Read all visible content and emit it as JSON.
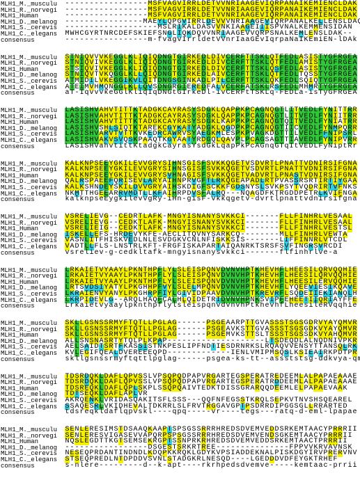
{
  "names": [
    "MLH1_M._musculu",
    "MLH1_R._norvegi",
    "MLH1_Human",
    "MLH1_D._melanog",
    "MLH1_S._cerevis",
    "MLH1_C._elegans",
    "consensus"
  ],
  "blocks": [
    {
      "rows": [
        "-----------------MSFVAGVIRRLDETVVNRIAAGEVIQRPANAIKEMIENCLDAK",
        "-----------------MSFVAGVIRRLDETVVNRIAAGEVIQRPANAIKEMIENCLDAK",
        "-----------------MSFVAGVIRRLDETVVNRIAAGEVIQRPANAIKEMIENCLDAK",
        "----------------MAEYLQPGVIRRLDEVVVNRIAAGEVIQRPANALKELLENSLDAQ",
        "-------------------MSLRIKALDASVVNKIAAGEIIISPVNALKEMMENSIDAN",
        "MWHCGYRTNRCDEFSKIEFSNGLIQKDQVVNRIAAGEVVQRPSNALKEMLENSLDAK--",
        "-----------------m-fvagvIrrldetVVnrIaaGEvIqrpaNaIKEmiEN-lDAk"
      ]
    },
    {
      "rows": [
        "STNIQVVVKEGGLKLIQIQDNGTGIRKEDLDIVCERFTTSKLQTFEDLASISTYGFRGEA",
        "STNIQVIVKEGGLKLIQIQDNGTGIRKEDLDIVCERFTTSKLQTFEDLAMISTYGFRGEA",
        "STSIQVIVKEGGLKLIQIQDNGTGIRKEDLDIVCERFTTSKLQSFEDLASISTYGFRGEA",
        "STNIQVTVKQGGLKLLQIQDNGTGIRKEDLAIVCERFTTSKLQTFEDLTQSSTYGFRGEA",
        "ATMIDILVKEGGIKVLQITDNGSGINKADLPILCERFTTSKLQKFEDLSQIQTYGFRGEA",
        "ATEIMVHMQNGGLKLLQVSDNGRGIEREDFALVCERFATSKLRSFEDLMHMRTYGFRGEA",
        "aT-IqvvvkeGGlKliqIqDNGtGIrkeDl-ivCERFtTSKLq-FEDLa-isTyGFRGEA"
      ]
    },
    {
      "rows": [
        "LASISHVAHVTITTKTADGKCAYRASYSDGKLQAPPKPCAGNQGTLITVEDLFYNITTRR",
        "LASISHVAHVTITTKTADGKCAYRASYSDGKLQAPPKPCAGNQGTLITVEDLFYNIITRR",
        "LASISHVAHVTITTKTADGKCAYRASYSDGKLKAPPKPCAGNQGTQITVEDLFYNIATRR",
        "LASISHVSHLSIQTKTAREKCGYKATYADGKLQGDPKPCAGNQGTIICVEDLFYNMPQRR",
        "LASISHVARVTVTTKVKEDRCAWRVSYAEGKMLESPKPVAGKDGTTILVEDLFFNIPSRL",
        "LASISHVAKVSVQSKPAAQTKGYAATYRDGQLQAVPLPCAGSAGTTIAVEDLFYNIPVRR",
        "LASiSHVahvtittKtadgkCayrasYsdGkLqapPkPcAGnqGTqItVEDLFyNiptRr"
      ]
    },
    {
      "rows": [
        "KALKNPSEEYGKILEVVGRYSIHNSGISFSVKKQGETVSDVRTLPNATTVDNIRSIFGNA",
        "KALKNPSEEYGKILEVVGRYSIHNSGISFSVKKQGETVSDVRTLPNATTVDNIRSIFGNA",
        "KALKNPSEEYGKILEVVGRYSVHNAGISFSVKKQGETVADVRTLPNASTVDNIRSIFGNA",
        "QALRSPAEEFQRISEVLARYAIHNPRVGFTLRKQGEAPADLRTPVASSRSRTIRTIYGAA",
        "KALKSHNDEYSKILDVVGRYAIHSKDIGFSCKKFGDSNYSLSVKPSYTVQDRIRTVFNKS",
        "NKMTTHGEEARRVMDTLLKFAIHRPDVSFALRQ---NQAGDFKTRGDDPETRLKVIFNGA",
        "kalknpseEygkilevvgRy-iHn-gisF-vkkqgetv-dvrtlpnattvdnirsifgna"
      ]
    },
    {
      "rows": [
        "VSRELIEVG--CEDRTLAFK-MNGYISNANYSVKKCI-------FLLFINHRLVESAAL",
        "VSRELIEVG--CEDKTLAFK-MNGYISNANYSVKKCI-------FLLFINHRLVESAAL",
        "VSRELIEIG--CEDKTLAFK-MNGYISNANYSVKKCI-------FLLFINHRLVESTSL",
        "ISKELLEFS-HRDEVYKFE-AECLITQVNYSARKCQ--------MLLFINHRLVEWTA",
        "VASNLITFHISKVEDLNLESVDGKVCNLNFISKKSIS-------LIFFINNRLVTCDL",
        "VADTLLFLS-LNSTRLKFT-FRGFISKAPARTAIQANRKTSRSFSVFINGRSVRCDI",
        "vsreliev-g-cedkltafk-mngyisnanysvkkci-------flfinhrlve-a"
      ]
    },
    {
      "rows": [
        "LRKAIETVYAAYLPKNTHPFLYLSLEISPQNVDVNVHPTKHEVHFLHEESILQRVQQHIE",
        "LRKAIETVYAAYLPKNTHPFLYLSLEISPQNVDVNVHPTKHEVHFLHEESILQRVQQHIE",
        "LRKAIETVYAAYLPKNTHPFLYLSLEISPQNVDVNVHPTKHEVHFLHEESILERVQQHIE",
        "LRTSVDSIYATYLPKGHHPFVYLSLELMPQNVDVNVHPTKHEVHFLYQEEVIESIKQAVE",
        "LKRAIENVYANYLPKGHRPFIYLGIVIDPAAVDVNVHPTKREVRFLSQDEIIEKIANQLH",
        "LKRPIDEVLG--ARQLHAQFCALHLQIDETRIDVNVHPNKSVIPFEHEETIIQRIAYFFE",
        "LrkaietvyaaylpknthpflylsleispqnvdvnvhPtkhevhfLheesileRVqqhie"
      ]
    },
    {
      "rows": [
        "SKLLGSNSSRMYFTQTLLPGLAG------PSGEAARPTTGVASSSTSGSGDRVYAYQMVR",
        "SKLLGSNSSRMYFTQTLLPGLAG------PSGEAVKSTTGVASSSTSGSGDKVYAYQMVR",
        "SKLLGSNSSRMYFTQTLLPGLAG------PSGEMVKSTTSLTSSSTSGSSDKVYAHQMVR",
        "ALLSNSNASRTYTQLPLKPAP--------------------LTSDEQDLALNQDNIVPKR",
        "AELSAIDTSRTFKASSISTNKPESLIPFNDTIESDRNRKSLRQAQVVENSYTTANSQLRK",
        "KVLEGIFQEALDVEREEEQPD-------------IENLVMIPMSQSLKSIEAIRKPDTPR",
        "skllgsnssrmyftqttlpglag------psgea-ks-tt--assststsg-ddkvya-qmvr"
      ]
    },
    {
      "rows": [
        "TDSRDQKLDAFLQPVSSLVPSQPQDPAPVRGARTEGSPERATREDEEMLALPAPAEAAAE",
        "TDSRDQKLDAFLQPVSSLVPSQPQDPAPVRGARTEGSPERATRDDEEMLALPAPAEAAAE",
        "TDSREQKLDAFLQPLSKPLSSQPQAIVTEDKTDISSGRARQQDEEMLELPAPAEVAAK",
        "TDTSEQKLDAFLAPLVR",
        "AKRQENKLVRIDASQAKITSFLSSS---QQFNFEGSSTKRQLSEPKVTNVSHSQEAREL",
        "SSAQESRLVKIDHEVALTDKRRLSLFRVTRGGAVGPTPSDRRDIPGGSGLLRRARTED",
        "tdsreqkldaflqpvskl----qpq-----vr----tegs---ratq-d-eml-lpapae"
      ]
    },
    {
      "rows": [
        "SENLERESIMSTDSAAQKAAPTSPSGSSRRRHREDSDVEMVEDDSRKEMTAACYPRRRII",
        "SENLERESVIGASEVVAPQRPSPSGSSRRRHREDSDVEMVENDSGKEMTAACYPRRRII",
        "NQSLEGDTTKGTSEMSEKRGPTSSNPRKRHREDSDVEMVEDDSRKEMTAACTPRRRII",
        "-----------------DSGESTSRKRTREE---------------FPPVVKRVAVNSK",
        "NESEQPRDANTINDNDLKDQPKKRQKLGDYKVPSIADDEKNALPISKDGYIRVPRERVNV",
        "STSEQPREDLNTDPDDVSVNLSTADGKRLNESQD----LGEDDDVDFEYGKTRHEF",
        "s-nlere---------d--k-apt----rkrhpedsdvemve-----kemtaac-prrii"
      ]
    }
  ]
}
